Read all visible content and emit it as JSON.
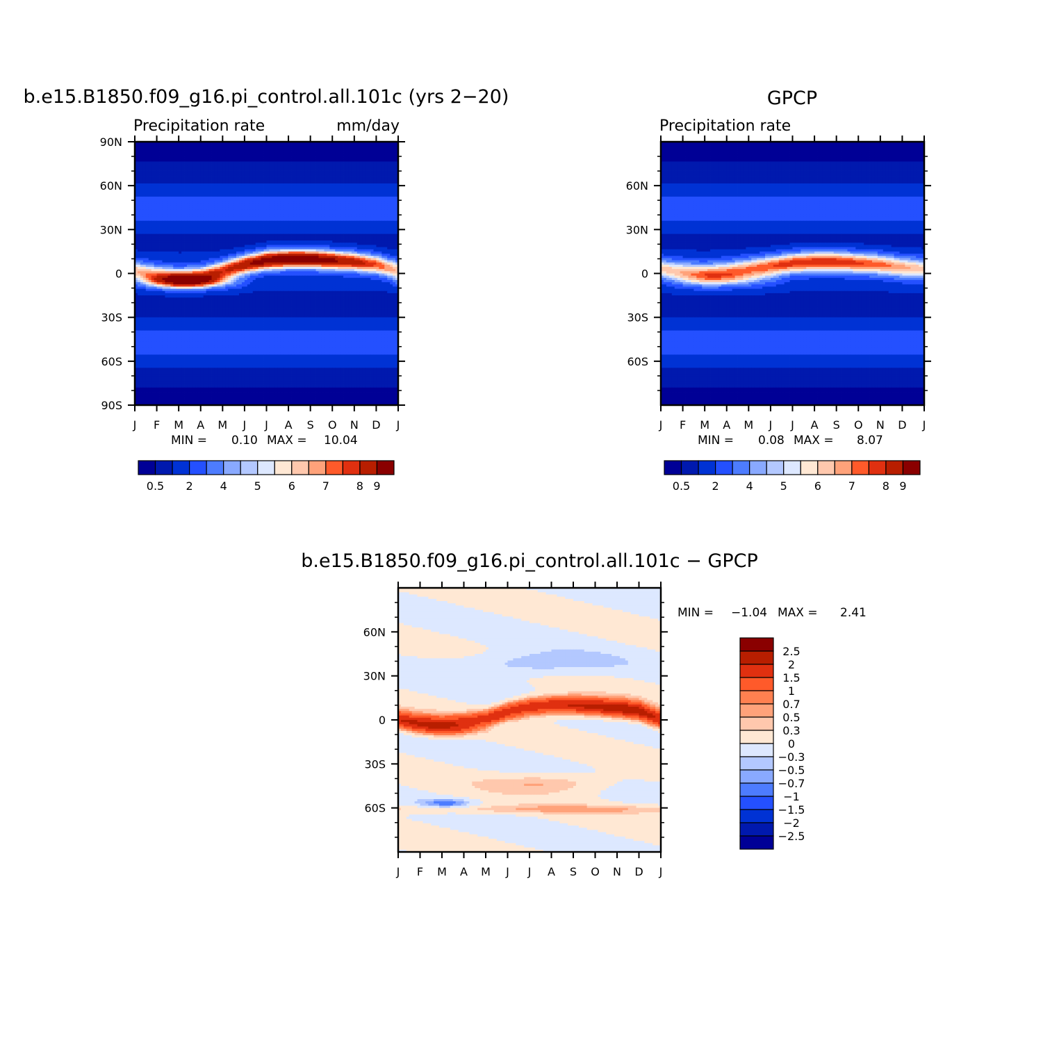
{
  "panels": [
    {
      "id": "model",
      "title": "b.e15.B1850.f09_g16.pi_control.all.101c (yrs 2−20)",
      "left_label": "Precipitation rate",
      "right_label": "mm/day",
      "stats": {
        "min_label": "MIN =",
        "min": "0.10",
        "max_label": "MAX =",
        "max": "10.04"
      }
    },
    {
      "id": "obs",
      "title": "GPCP",
      "left_label": "Precipitation rate",
      "right_label": "",
      "stats": {
        "min_label": "MIN =",
        "min": "0.08",
        "max_label": "MAX =",
        "max": "8.07"
      }
    },
    {
      "id": "diff",
      "title": "b.e15.B1850.f09_g16.pi_control.all.101c − GPCP",
      "left_label": "",
      "right_label": "",
      "stats": {
        "min_label": "MIN =",
        "min": "−1.04",
        "max_label": "MAX =",
        "max": "2.41"
      }
    }
  ],
  "chart_data": [
    {
      "type": "heatmap",
      "title": "b.e15.B1850.f09_g16.pi_control.all.101c (yrs 2−20)",
      "subtitle_left": "Precipitation rate",
      "units": "mm/day",
      "x_ticks": [
        "J",
        "F",
        "M",
        "A",
        "M",
        "J",
        "J",
        "A",
        "S",
        "O",
        "N",
        "D",
        "J"
      ],
      "y_ticks": [
        "90N",
        "60N",
        "30N",
        "0",
        "30S",
        "60S",
        "90S"
      ],
      "y_values": [
        90,
        60,
        30,
        0,
        -30,
        -60,
        -90
      ],
      "ylim": [
        -90,
        90
      ],
      "stats": {
        "min": 0.1,
        "max": 10.04
      },
      "colorbar": {
        "orientation": "horizontal",
        "labels": [
          "0.5",
          "2",
          "4",
          "5",
          "6",
          "7",
          "8",
          "9"
        ],
        "colors": [
          "#000096",
          "#0019ae",
          "#0032d4",
          "#2450ff",
          "#4d7cff",
          "#89a9ff",
          "#b3c8ff",
          "#dde8ff",
          "#ffe8d4",
          "#ffc8ad",
          "#ffa27a",
          "#ff5a2a",
          "#e03010",
          "#b81e00",
          "#8a0000"
        ]
      },
      "field": {
        "itcz_peak_lat_by_month": [
          2,
          -1,
          -3,
          -2,
          2,
          6,
          9,
          10,
          10,
          9,
          8,
          6,
          2
        ],
        "itcz_peak_mm_day_by_month": [
          6.4,
          6.6,
          7.4,
          7.5,
          7.8,
          8.9,
          9.8,
          10.04,
          9.9,
          9.3,
          8.6,
          7.6,
          6.4
        ]
      }
    },
    {
      "type": "heatmap",
      "title": "GPCP",
      "subtitle_left": "Precipitation rate",
      "x_ticks": [
        "J",
        "F",
        "M",
        "A",
        "M",
        "J",
        "J",
        "A",
        "S",
        "O",
        "N",
        "D",
        "J"
      ],
      "y_ticks": [
        "60N",
        "30N",
        "0",
        "30S",
        "60S"
      ],
      "y_values": [
        60,
        30,
        0,
        -30,
        -60
      ],
      "ylim": [
        -90,
        90
      ],
      "stats": {
        "min": 0.08,
        "max": 8.07
      },
      "colorbar": {
        "orientation": "horizontal",
        "labels": [
          "0.5",
          "2",
          "4",
          "5",
          "6",
          "7",
          "8",
          "9"
        ],
        "colors": [
          "#000096",
          "#0019ae",
          "#0032d4",
          "#2450ff",
          "#4d7cff",
          "#89a9ff",
          "#b3c8ff",
          "#dde8ff",
          "#ffe8d4",
          "#ffc8ad",
          "#ffa27a",
          "#ff5a2a",
          "#e03010",
          "#b81e00",
          "#8a0000"
        ]
      },
      "field": {
        "itcz_peak_lat_by_month": [
          3,
          1,
          0,
          1,
          3,
          5,
          7,
          8,
          8,
          7,
          6,
          4,
          3
        ],
        "itcz_peak_mm_day_by_month": [
          6.2,
          6.3,
          6.6,
          6.8,
          7.0,
          7.5,
          7.9,
          8.07,
          8.0,
          7.7,
          7.3,
          6.8,
          6.2
        ]
      }
    },
    {
      "type": "heatmap",
      "title": "b.e15.B1850.f09_g16.pi_control.all.101c − GPCP",
      "x_ticks": [
        "J",
        "F",
        "M",
        "A",
        "M",
        "J",
        "J",
        "A",
        "S",
        "O",
        "N",
        "D",
        "J"
      ],
      "y_ticks": [
        "60N",
        "30N",
        "0",
        "30S",
        "60S"
      ],
      "y_values": [
        60,
        30,
        0,
        -30,
        -60
      ],
      "ylim": [
        -90,
        90
      ],
      "stats": {
        "min": -1.04,
        "max": 2.41
      },
      "colorbar": {
        "orientation": "vertical",
        "labels": [
          "2.5",
          "2",
          "1.5",
          "1",
          "0.7",
          "0.5",
          "0.3",
          "0",
          "−0.3",
          "−0.5",
          "−0.7",
          "−1",
          "−1.5",
          "−2",
          "−2.5"
        ],
        "colors": [
          "#8a0000",
          "#b81e00",
          "#e03010",
          "#ff5a2a",
          "#ff8050",
          "#ffa27a",
          "#ffc8ad",
          "#ffe8d4",
          "#dde8ff",
          "#b3c8ff",
          "#89a9ff",
          "#4d7cff",
          "#2450ff",
          "#0032d4",
          "#0019ae",
          "#000096"
        ]
      },
      "field": {
        "positive_band_lat_by_month": [
          0,
          -3,
          -4,
          -3,
          0,
          6,
          9,
          10,
          10,
          9,
          8,
          6,
          0
        ],
        "positive_band_amp_by_month": [
          2.0,
          2.2,
          2.4,
          2.2,
          1.8,
          1.8,
          2.0,
          2.1,
          2.2,
          2.3,
          2.41,
          2.3,
          2.0
        ]
      }
    }
  ]
}
